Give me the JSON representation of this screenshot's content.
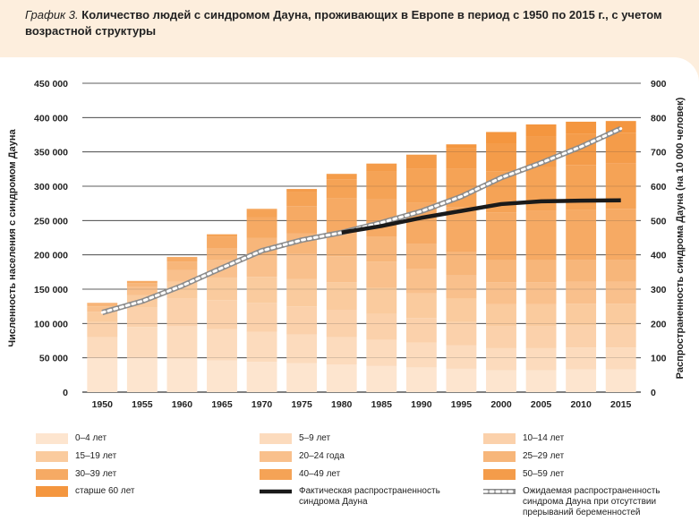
{
  "figure": {
    "label": "График 3.",
    "title": "Количество людей с синдромом Дауна, проживающих в Европе в период с 1950 по 2015 г., с учетом возрастной структуры"
  },
  "chart_data": {
    "type": "bar",
    "stacked": true,
    "categories": [
      "1950",
      "1955",
      "1960",
      "1965",
      "1970",
      "1975",
      "1980",
      "1985",
      "1990",
      "1995",
      "2000",
      "2005",
      "2010",
      "2015"
    ],
    "series": [
      {
        "name": "0–4 лет",
        "color": "#fde5cf",
        "values": [
          50000,
          50000,
          49000,
          46000,
          44000,
          42000,
          40000,
          38000,
          36000,
          34000,
          32000,
          32000,
          33000,
          33000
        ]
      },
      {
        "name": "5–9 лет",
        "color": "#fcdbbd",
        "values": [
          30000,
          45000,
          47000,
          46000,
          44000,
          42000,
          40000,
          38000,
          36000,
          34000,
          32000,
          32000,
          32000,
          32000
        ]
      },
      {
        "name": "10–14 лет",
        "color": "#fbd1ab",
        "values": [
          22000,
          28000,
          40000,
          42000,
          42000,
          41000,
          40000,
          38000,
          36000,
          34000,
          32000,
          32000,
          32000,
          32000
        ]
      },
      {
        "name": "15–19 лет",
        "color": "#facb9e",
        "values": [
          15000,
          18000,
          25000,
          33000,
          38000,
          40000,
          40000,
          38000,
          36000,
          34000,
          32000,
          32000,
          32000,
          32000
        ]
      },
      {
        "name": "20–24 года",
        "color": "#f9c08c",
        "values": [
          8000,
          12000,
          17000,
          25000,
          32000,
          36000,
          38000,
          38000,
          36000,
          34000,
          32000,
          32000,
          32000,
          32000
        ]
      },
      {
        "name": "25–29 лет",
        "color": "#f7b67a",
        "values": [
          3000,
          6000,
          12000,
          18000,
          25000,
          30000,
          34000,
          36000,
          36000,
          34000,
          32000,
          32000,
          32000,
          32000
        ]
      },
      {
        "name": "30–39 лет",
        "color": "#f6aa64",
        "values": [
          2000,
          3000,
          6000,
          16000,
          30000,
          40000,
          50000,
          55000,
          60000,
          65000,
          70000,
          72000,
          72000,
          74000
        ]
      },
      {
        "name": "40–49 лет",
        "color": "#f5a356",
        "values": [
          0,
          0,
          1000,
          4000,
          10000,
          20000,
          28000,
          40000,
          50000,
          57000,
          60000,
          64000,
          66000,
          66000
        ]
      },
      {
        "name": "50–59 лет",
        "color": "#f49c4a",
        "values": [
          0,
          0,
          0,
          0,
          2000,
          5000,
          8000,
          12000,
          20000,
          30000,
          40000,
          45000,
          45000,
          45000
        ]
      },
      {
        "name": "старше 60 лет",
        "color": "#f4963f",
        "values": [
          0,
          0,
          0,
          0,
          0,
          0,
          0,
          0,
          0,
          5000,
          17000,
          17000,
          18000,
          17000
        ]
      }
    ],
    "lines": [
      {
        "name": "Фактическая распространенность синдрома Дауна",
        "axis": "right",
        "style": "solid-black",
        "values": [
          232,
          265,
          310,
          362,
          412,
          443,
          465,
          484,
          508,
          528,
          548,
          556,
          558,
          559
        ]
      },
      {
        "name": "Ожидаемая распространенность синдрома Дауна при отсутствии прерываний беременностей",
        "axis": "right",
        "style": "dotted-gray",
        "values": [
          232,
          265,
          310,
          362,
          412,
          443,
          465,
          494,
          527,
          570,
          625,
          668,
          715,
          768
        ]
      }
    ],
    "ylabel": "Численность населения с синдромом Дауна",
    "y2label": "Распространенность синдрома Дауна (на 10 000 человек)",
    "ylim": [
      0,
      450000
    ],
    "y2lim": [
      0,
      900
    ],
    "yticks": [
      "0",
      "50 000",
      "100 000",
      "150 000",
      "200 000",
      "250 000",
      "300 000",
      "350 000",
      "400 000",
      "450 000"
    ],
    "y2ticks": [
      "0",
      "100",
      "200",
      "300",
      "400",
      "500",
      "600",
      "700",
      "800",
      "900"
    ]
  }
}
